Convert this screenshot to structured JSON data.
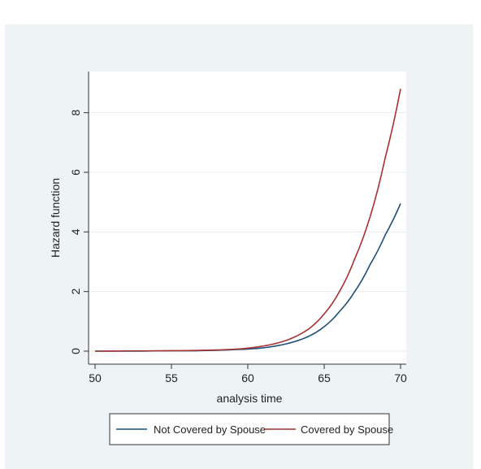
{
  "chart_data": {
    "type": "line",
    "title": "",
    "xlabel": "analysis time",
    "ylabel": "Hazard function",
    "xlim": [
      50,
      70
    ],
    "ylim": [
      0,
      9
    ],
    "xticks": [
      50,
      55,
      60,
      65,
      70
    ],
    "yticks": [
      0,
      2,
      4,
      6,
      8
    ],
    "grid": true,
    "legend_position": "bottom",
    "x": [
      50,
      52,
      54,
      56,
      58,
      59,
      60,
      61,
      62,
      63,
      64,
      65,
      66,
      67,
      68,
      69,
      70
    ],
    "series": [
      {
        "name": "Not Covered by Spouse",
        "color": "#1f4e79",
        "values": [
          0.0,
          0.0,
          0.01,
          0.01,
          0.03,
          0.05,
          0.07,
          0.11,
          0.19,
          0.31,
          0.5,
          0.82,
          1.33,
          2.0,
          2.9,
          3.9,
          4.95
        ]
      },
      {
        "name": "Covered by Spouse",
        "color": "#a83232",
        "values": [
          0.0,
          0.01,
          0.01,
          0.02,
          0.04,
          0.06,
          0.1,
          0.17,
          0.28,
          0.46,
          0.75,
          1.25,
          2.0,
          3.1,
          4.5,
          6.5,
          8.8
        ]
      }
    ]
  }
}
